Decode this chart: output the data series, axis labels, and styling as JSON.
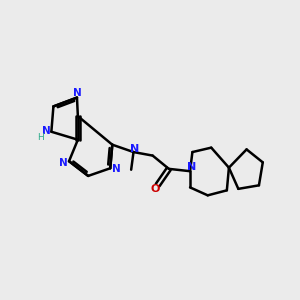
{
  "bg_color": "#ebebeb",
  "bond_color": "#000000",
  "bond_width": 1.8,
  "figsize": [
    3.0,
    3.0
  ],
  "dpi": 100,
  "atom_labels": {
    "N7": {
      "text": "N",
      "color": "#1a1aff"
    },
    "N9": {
      "text": "N",
      "color": "#1a1aff"
    },
    "N1": {
      "text": "N",
      "color": "#1a1aff"
    },
    "N3": {
      "text": "N",
      "color": "#1a1aff"
    },
    "NH": {
      "text": "H",
      "color": "#2aaa8a"
    },
    "Nlink": {
      "text": "N",
      "color": "#1a1aff"
    },
    "Npip": {
      "text": "N",
      "color": "#1a1aff"
    },
    "O": {
      "text": "O",
      "color": "#cc0000"
    }
  }
}
